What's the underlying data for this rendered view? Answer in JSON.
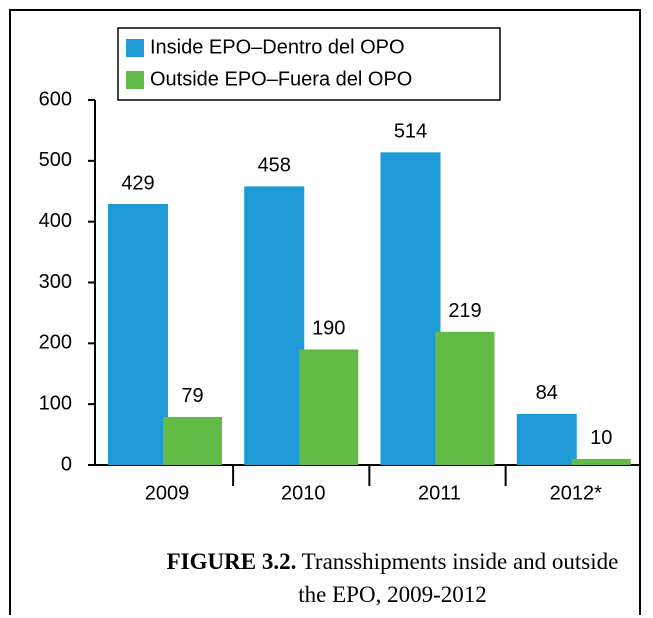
{
  "chart_data": {
    "type": "bar",
    "categories": [
      "2009",
      "2010",
      "2011",
      "2012*"
    ],
    "series": [
      {
        "name": "Inside EPO–Dentro del OPO",
        "color": "#1e9ad6",
        "values": [
          429,
          458,
          514,
          84
        ]
      },
      {
        "name": "Outside EPO–Fuera del OPO",
        "color": "#61bb46",
        "values": [
          79,
          190,
          219,
          10
        ]
      }
    ],
    "ylim": [
      0,
      600
    ],
    "yticks": [
      0,
      100,
      200,
      300,
      400,
      500,
      600
    ],
    "grid": false,
    "legend": "top-left",
    "data_labels": true
  },
  "caption": {
    "label": "FIGURE 3.2.",
    "text": "Transshipments inside and outside the EPO, 2009-2012"
  }
}
